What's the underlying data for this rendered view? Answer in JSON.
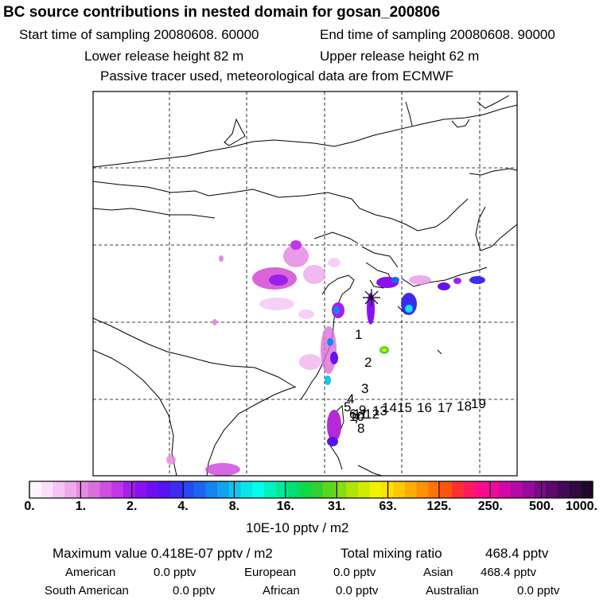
{
  "header": {
    "title": "BC  source contributions in nested domain for gosan_200806",
    "start_time": "Start time of sampling 20080608. 60000",
    "end_time": "End time of sampling 20080608. 90000",
    "lower_release": "Lower release height   82 m",
    "upper_release": "Upper release height   62 m",
    "tracer_note": "Passive tracer used, meteorological data are from ECMWF"
  },
  "map": {
    "receptor_marker": "gosan-receptor",
    "trajectory_labels": [
      "1",
      "2",
      "3",
      "4",
      "5",
      "6",
      "7",
      "8",
      "9",
      "10",
      "11",
      "12",
      "13",
      "14",
      "15",
      "16",
      "17",
      "18",
      "19"
    ]
  },
  "colorbar": {
    "ticks": [
      "0.",
      "1.",
      "2.",
      "4.",
      "8.",
      "16.",
      "31.",
      "63.",
      "125.",
      "250.",
      "500.",
      "1000."
    ],
    "colors": [
      "#fff5ff",
      "#fbe0fb",
      "#f5c4f5",
      "#eea8ee",
      "#e58ae5",
      "#dc6edc",
      "#cf4fde",
      "#c235e8",
      "#a61eec",
      "#8b10f0",
      "#6c10f2",
      "#5514f0",
      "#3d2cf0",
      "#2a48f0",
      "#1a66f2",
      "#1484f2",
      "#10a4f0",
      "#0cc6ee",
      "#08e6ec",
      "#00ffee",
      "#00f2c0",
      "#00ea98",
      "#00e070",
      "#10d848",
      "#30d030",
      "#5ad61e",
      "#84dc12",
      "#aee40a",
      "#d2ec00",
      "#f2f200",
      "#ffe000",
      "#ffc800",
      "#ffae00",
      "#ff9200",
      "#ff7400",
      "#ff5410",
      "#ff3030",
      "#ff1a60",
      "#ff0a8a",
      "#ee0a9a",
      "#d00aa6",
      "#b40aa8",
      "#980a9e",
      "#7a0a88",
      "#5c0a6e",
      "#440a56",
      "#300a40",
      "#200a2c"
    ],
    "unit": "10E-10 pptv / m2"
  },
  "stats": {
    "max_label": "Maximum value  0.418E-07 pptv / m2",
    "total_label": "Total mixing ratio",
    "total_value": "468.4 pptv",
    "american_label": "American",
    "american_value": "0.0 pptv",
    "european_label": "European",
    "european_value": "0.0 pptv",
    "asian_label": "Asian",
    "asian_value": "468.4 pptv",
    "south_american_label": "South American",
    "south_american_value": "0.0 pptv",
    "african_label": "African",
    "african_value": "0.0 pptv",
    "australian_label": "Australian",
    "australian_value": "0.0 pptv"
  }
}
